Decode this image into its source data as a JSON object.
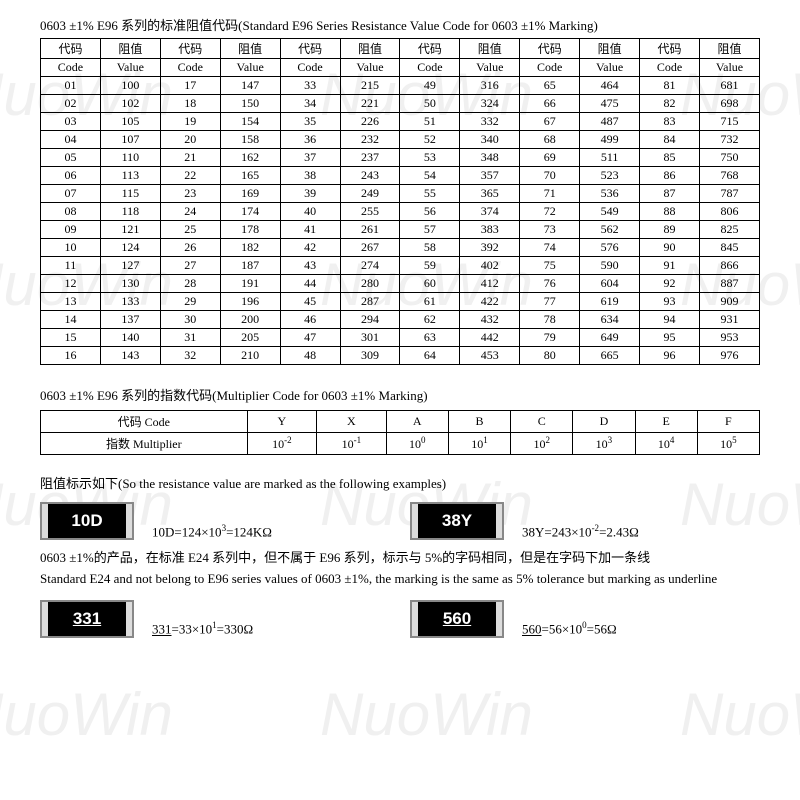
{
  "watermark_text": "NuoWin",
  "table1": {
    "title": "0603 ±1% E96 系列的标准阻值代码(Standard E96 Series Resistance Value Code for 0603 ±1% Marking)",
    "header_cn": "代码",
    "header_en": "Code",
    "header_val_cn": "阻值",
    "header_val_en": "Value",
    "pairs": [
      [
        "01",
        "100"
      ],
      [
        "02",
        "102"
      ],
      [
        "03",
        "105"
      ],
      [
        "04",
        "107"
      ],
      [
        "05",
        "110"
      ],
      [
        "06",
        "113"
      ],
      [
        "07",
        "115"
      ],
      [
        "08",
        "118"
      ],
      [
        "09",
        "121"
      ],
      [
        "10",
        "124"
      ],
      [
        "11",
        "127"
      ],
      [
        "12",
        "130"
      ],
      [
        "13",
        "133"
      ],
      [
        "14",
        "137"
      ],
      [
        "15",
        "140"
      ],
      [
        "16",
        "143"
      ],
      [
        "17",
        "147"
      ],
      [
        "18",
        "150"
      ],
      [
        "19",
        "154"
      ],
      [
        "20",
        "158"
      ],
      [
        "21",
        "162"
      ],
      [
        "22",
        "165"
      ],
      [
        "23",
        "169"
      ],
      [
        "24",
        "174"
      ],
      [
        "25",
        "178"
      ],
      [
        "26",
        "182"
      ],
      [
        "27",
        "187"
      ],
      [
        "28",
        "191"
      ],
      [
        "29",
        "196"
      ],
      [
        "30",
        "200"
      ],
      [
        "31",
        "205"
      ],
      [
        "32",
        "210"
      ],
      [
        "33",
        "215"
      ],
      [
        "34",
        "221"
      ],
      [
        "35",
        "226"
      ],
      [
        "36",
        "232"
      ],
      [
        "37",
        "237"
      ],
      [
        "38",
        "243"
      ],
      [
        "39",
        "249"
      ],
      [
        "40",
        "255"
      ],
      [
        "41",
        "261"
      ],
      [
        "42",
        "267"
      ],
      [
        "43",
        "274"
      ],
      [
        "44",
        "280"
      ],
      [
        "45",
        "287"
      ],
      [
        "46",
        "294"
      ],
      [
        "47",
        "301"
      ],
      [
        "48",
        "309"
      ],
      [
        "49",
        "316"
      ],
      [
        "50",
        "324"
      ],
      [
        "51",
        "332"
      ],
      [
        "52",
        "340"
      ],
      [
        "53",
        "348"
      ],
      [
        "54",
        "357"
      ],
      [
        "55",
        "365"
      ],
      [
        "56",
        "374"
      ],
      [
        "57",
        "383"
      ],
      [
        "58",
        "392"
      ],
      [
        "59",
        "402"
      ],
      [
        "60",
        "412"
      ],
      [
        "61",
        "422"
      ],
      [
        "62",
        "432"
      ],
      [
        "63",
        "442"
      ],
      [
        "64",
        "453"
      ],
      [
        "65",
        "464"
      ],
      [
        "66",
        "475"
      ],
      [
        "67",
        "487"
      ],
      [
        "68",
        "499"
      ],
      [
        "69",
        "511"
      ],
      [
        "70",
        "523"
      ],
      [
        "71",
        "536"
      ],
      [
        "72",
        "549"
      ],
      [
        "73",
        "562"
      ],
      [
        "74",
        "576"
      ],
      [
        "75",
        "590"
      ],
      [
        "76",
        "604"
      ],
      [
        "77",
        "619"
      ],
      [
        "78",
        "634"
      ],
      [
        "79",
        "649"
      ],
      [
        "80",
        "665"
      ],
      [
        "81",
        "681"
      ],
      [
        "82",
        "698"
      ],
      [
        "83",
        "715"
      ],
      [
        "84",
        "732"
      ],
      [
        "85",
        "750"
      ],
      [
        "86",
        "768"
      ],
      [
        "87",
        "787"
      ],
      [
        "88",
        "806"
      ],
      [
        "89",
        "825"
      ],
      [
        "90",
        "845"
      ],
      [
        "91",
        "866"
      ],
      [
        "92",
        "887"
      ],
      [
        "93",
        "909"
      ],
      [
        "94",
        "931"
      ],
      [
        "95",
        "953"
      ],
      [
        "96",
        "976"
      ]
    ]
  },
  "table2": {
    "title": "0603 ±1% E96 系列的指数代码(Multiplier Code for 0603 ±1% Marking)",
    "row1_label": "代码 Code",
    "row2_label": "指数 Multiplier",
    "codes": [
      "Y",
      "X",
      "A",
      "B",
      "C",
      "D",
      "E",
      "F"
    ],
    "mults": [
      "10<sup>-2</sup>",
      "10<sup>-1</sup>",
      "10<sup>0</sup>",
      "10<sup>1</sup>",
      "10<sup>2</sup>",
      "10<sup>3</sup>",
      "10<sup>4</sup>",
      "10<sup>5</sup>"
    ]
  },
  "examples": {
    "title": "阻值标示如下(So the resistance value are marked as the following examples)",
    "chip1": "10D",
    "formula1": "10D=124×10<sup>3</sup>=124KΩ",
    "chip2": "38Y",
    "formula2": "38Y=243×10<sup>-2</sup>=2.43Ω",
    "note": "0603 ±1%的产品，在标准 E24 系列中，但不属于 E96 系列，标示与 5%的字码相同，但是在字码下加一条线<br>Standard E24 and not belong to E96 series values of 0603 ±1%, the marking is the same as 5% tolerance but marking as underline",
    "chip3": "331",
    "formula3": "<span class='ul'>331</span>=33×10<sup>1</sup>=330Ω",
    "chip4": "560",
    "formula4": "<span class='ul'>560</span>=56×10<sup>0</sup>=56Ω"
  },
  "styling": {
    "font_family": "Times New Roman",
    "font_size_body": 12,
    "font_size_title": 13,
    "border_color": "#000000",
    "background": "#ffffff",
    "chip_bg": "#000000",
    "chip_text": "#ffffff",
    "watermark_color": "#f0f0f0"
  }
}
